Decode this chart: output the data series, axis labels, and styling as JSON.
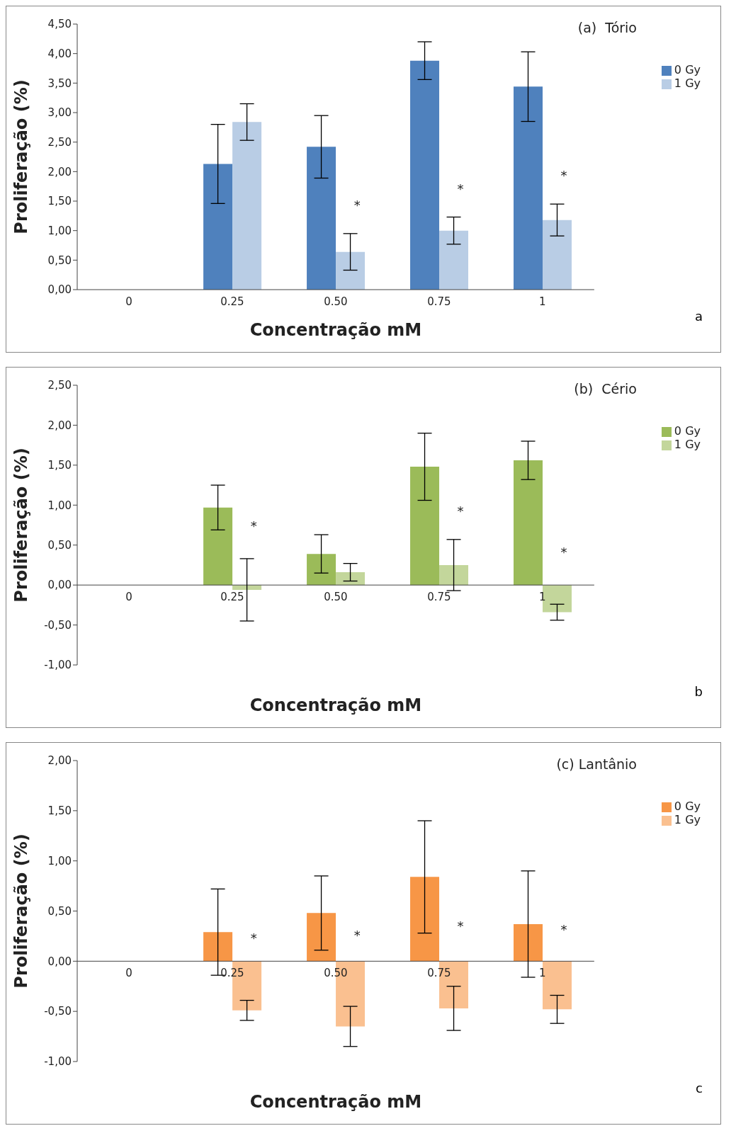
{
  "chart_data": [
    {
      "type": "bar",
      "title": "(a)  Tório",
      "xlabel": "Concentração mM",
      "ylabel": "Proliferação (%)",
      "categories": [
        "0",
        "0.25",
        "0.50",
        "0.75",
        "1"
      ],
      "legend": "right",
      "grid": false,
      "series": [
        {
          "name": "0 Gy",
          "color": "#4f81bd",
          "values": [
            null,
            2.13,
            2.42,
            3.88,
            3.44
          ],
          "errors": [
            null,
            0.67,
            0.53,
            0.32,
            0.59
          ]
        },
        {
          "name": "1 Gy",
          "color": "#b9cde5",
          "values": [
            null,
            2.84,
            0.64,
            1.0,
            1.18
          ],
          "errors": [
            null,
            0.31,
            0.31,
            0.23,
            0.27
          ]
        }
      ],
      "ylim": [
        0,
        4.5
      ],
      "yticks": [
        {
          "value": 0,
          "label": "0,00"
        },
        {
          "value": 0.5,
          "label": "0,50"
        },
        {
          "value": 1,
          "label": "1,00"
        },
        {
          "value": 1.5,
          "label": "1,50"
        },
        {
          "value": 2,
          "label": "2,00"
        },
        {
          "value": 2.5,
          "label": "2,50"
        },
        {
          "value": 3,
          "label": "3,00"
        },
        {
          "value": 3.5,
          "label": "3,50"
        },
        {
          "value": 4,
          "label": "4,00"
        },
        {
          "value": 4.5,
          "label": "4,50"
        }
      ],
      "annotations": [
        {
          "text": "*",
          "x": "0.50",
          "y": 1.43
        },
        {
          "text": "*",
          "x": "0.75",
          "y": 1.7
        },
        {
          "text": "*",
          "x": "1",
          "y": 1.93
        },
        "a"
      ]
    },
    {
      "type": "bar",
      "title": "(b)  Cério",
      "xlabel": "Concentração mM",
      "ylabel": "Proliferação (%)",
      "categories": [
        "0",
        "0.25",
        "0.50",
        "0.75",
        "1"
      ],
      "legend": "right",
      "grid": false,
      "series": [
        {
          "name": "0 Gy",
          "color": "#9bbb59",
          "values": [
            null,
            0.97,
            0.39,
            1.48,
            1.56
          ],
          "errors": [
            null,
            0.28,
            0.24,
            0.42,
            0.24
          ]
        },
        {
          "name": "1 Gy",
          "color": "#c3d69b",
          "values": [
            null,
            -0.06,
            0.16,
            0.25,
            -0.34
          ],
          "errors": [
            null,
            0.39,
            0.11,
            0.32,
            0.1
          ]
        }
      ],
      "ylim": [
        -1,
        2.5
      ],
      "yticks": [
        {
          "value": -1,
          "label": "-1,00"
        },
        {
          "value": -0.5,
          "label": "-0,50"
        },
        {
          "value": 0,
          "label": "0,00"
        },
        {
          "value": 0.5,
          "label": "0,50"
        },
        {
          "value": 1,
          "label": "1,00"
        },
        {
          "value": 1.5,
          "label": "1,50"
        },
        {
          "value": 2,
          "label": "2,00"
        },
        {
          "value": 2.5,
          "label": "2,50"
        }
      ],
      "annotations": [
        {
          "text": "*",
          "x": "0.25",
          "y": 0.74
        },
        {
          "text": "*",
          "x": "0.75",
          "y": 0.92
        },
        {
          "text": "*",
          "x": "1",
          "y": 0.41
        },
        "b"
      ]
    },
    {
      "type": "bar",
      "title": "(c) Lantânio",
      "xlabel": "Concentração mM",
      "ylabel": "Proliferação (%)",
      "categories": [
        "0",
        "0.25",
        "0.50",
        "0.75",
        "1"
      ],
      "legend": "right",
      "grid": false,
      "series": [
        {
          "name": "0 Gy",
          "color": "#f79646",
          "values": [
            null,
            0.29,
            0.48,
            0.84,
            0.37
          ],
          "errors": [
            null,
            0.43,
            0.37,
            0.56,
            0.53
          ]
        },
        {
          "name": "1 Gy",
          "color": "#fac090",
          "values": [
            null,
            -0.49,
            -0.65,
            -0.47,
            -0.48
          ],
          "errors": [
            null,
            0.1,
            0.2,
            0.22,
            0.14
          ]
        }
      ],
      "ylim": [
        -1,
        2
      ],
      "yticks": [
        {
          "value": -1,
          "label": "-1,00"
        },
        {
          "value": -0.5,
          "label": "-0,50"
        },
        {
          "value": 0,
          "label": "0,00"
        },
        {
          "value": 0.5,
          "label": "0,50"
        },
        {
          "value": 1,
          "label": "1,00"
        },
        {
          "value": 1.5,
          "label": "1,50"
        },
        {
          "value": 2,
          "label": "2,00"
        }
      ],
      "annotations": [
        {
          "text": "*",
          "x": "0.25",
          "y": 0.23
        },
        {
          "text": "*",
          "x": "0.50",
          "y": 0.26
        },
        {
          "text": "*",
          "x": "0.75",
          "y": 0.35
        },
        {
          "text": "*",
          "x": "1",
          "y": 0.31
        },
        "c"
      ]
    }
  ]
}
